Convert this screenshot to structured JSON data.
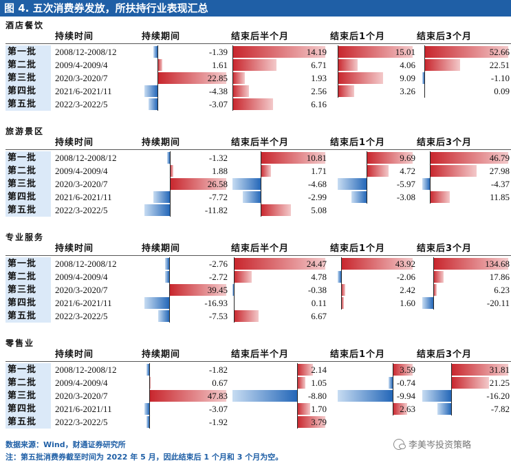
{
  "banner_title": "图 4. 五次消费券发放，所扶持行业表现汇总",
  "headers": {
    "period": "持续时间",
    "during": "持续期间",
    "half_year": "结束后半个月",
    "one_month": "结束后1个月",
    "three_month": "结束后3个月"
  },
  "footer": {
    "source": "数据来源：Wind，财通证券研究所",
    "note": "注：第五批消费券截至时间为 2022 年 5 月，因此结束后 1 个月和 3 个月为空。",
    "watermark": "李美岑投资策略"
  },
  "chart_data": {
    "type": "table",
    "columns": [
      "持续时间",
      "持续期间",
      "结束后半个月",
      "结束后1个月",
      "结束后3个月"
    ],
    "sections": [
      {
        "name": "酒店餐饮",
        "rows": [
          {
            "batch": "第一批",
            "period": "2008/12-2008/12",
            "during": "-1.39",
            "half_year": "14.19",
            "one_month": "15.01",
            "three_month": "52.66"
          },
          {
            "batch": "第二批",
            "period": "2009/4-2009/4",
            "during": "1.61",
            "half_year": "6.71",
            "one_month": "4.06",
            "three_month": "22.51"
          },
          {
            "batch": "第三批",
            "period": "2020/3-2020/7",
            "during": "22.85",
            "half_year": "1.93",
            "one_month": "9.09",
            "three_month": "-1.10"
          },
          {
            "batch": "第四批",
            "period": "2021/6-2021/11",
            "during": "-4.38",
            "half_year": "2.56",
            "one_month": "3.26",
            "three_month": "0.09"
          },
          {
            "batch": "第五批",
            "period": "2022/3-2022/5",
            "during": "-3.07",
            "half_year": "6.16",
            "one_month": "",
            "three_month": ""
          }
        ]
      },
      {
        "name": "旅游景区",
        "rows": [
          {
            "batch": "第一批",
            "period": "2008/12-2008/12",
            "during": "-1.32",
            "half_year": "10.81",
            "one_month": "9.69",
            "three_month": "46.79"
          },
          {
            "batch": "第二批",
            "period": "2009/4-2009/4",
            "during": "1.88",
            "half_year": "1.71",
            "one_month": "4.72",
            "three_month": "27.98"
          },
          {
            "batch": "第三批",
            "period": "2020/3-2020/7",
            "during": "26.58",
            "half_year": "-4.68",
            "one_month": "-5.97",
            "three_month": "-4.37"
          },
          {
            "batch": "第四批",
            "period": "2021/6-2021/11",
            "during": "-7.72",
            "half_year": "-2.99",
            "one_month": "-3.08",
            "three_month": "11.85"
          },
          {
            "batch": "第五批",
            "period": "2022/3-2022/5",
            "during": "-11.82",
            "half_year": "5.08",
            "one_month": "",
            "three_month": ""
          }
        ]
      },
      {
        "name": "专业服务",
        "rows": [
          {
            "batch": "第一批",
            "period": "2008/12-2008/12",
            "during": "-2.76",
            "half_year": "24.47",
            "one_month": "43.92",
            "three_month": "134.68"
          },
          {
            "batch": "第二批",
            "period": "2009/4-2009/4",
            "during": "-2.72",
            "half_year": "4.78",
            "one_month": "-2.06",
            "three_month": "17.86"
          },
          {
            "batch": "第三批",
            "period": "2020/3-2020/7",
            "during": "39.45",
            "half_year": "-0.38",
            "one_month": "2.42",
            "three_month": "6.23"
          },
          {
            "batch": "第四批",
            "period": "2021/6-2021/11",
            "during": "-16.93",
            "half_year": "0.11",
            "one_month": "1.60",
            "three_month": "-20.11"
          },
          {
            "batch": "第五批",
            "period": "2022/3-2022/5",
            "during": "-7.53",
            "half_year": "6.67",
            "one_month": "",
            "three_month": ""
          }
        ]
      },
      {
        "name": "零售业",
        "rows": [
          {
            "batch": "第一批",
            "period": "2008/12-2008/12",
            "during": "-1.82",
            "half_year": "2.14",
            "one_month": "3.59",
            "three_month": "31.81"
          },
          {
            "batch": "第二批",
            "period": "2009/4-2009/4",
            "during": "0.67",
            "half_year": "1.05",
            "one_month": "-0.74",
            "three_month": "21.25"
          },
          {
            "batch": "第三批",
            "period": "2020/3-2020/7",
            "during": "47.83",
            "half_year": "-8.80",
            "one_month": "-9.94",
            "three_month": "-16.20"
          },
          {
            "batch": "第四批",
            "period": "2021/6-2021/11",
            "during": "-3.07",
            "half_year": "1.70",
            "one_month": "2.63",
            "three_month": "-7.82"
          },
          {
            "batch": "第五批",
            "period": "2022/3-2022/5",
            "during": "-1.92",
            "half_year": "3.79",
            "one_month": "",
            "three_month": ""
          }
        ]
      }
    ]
  }
}
